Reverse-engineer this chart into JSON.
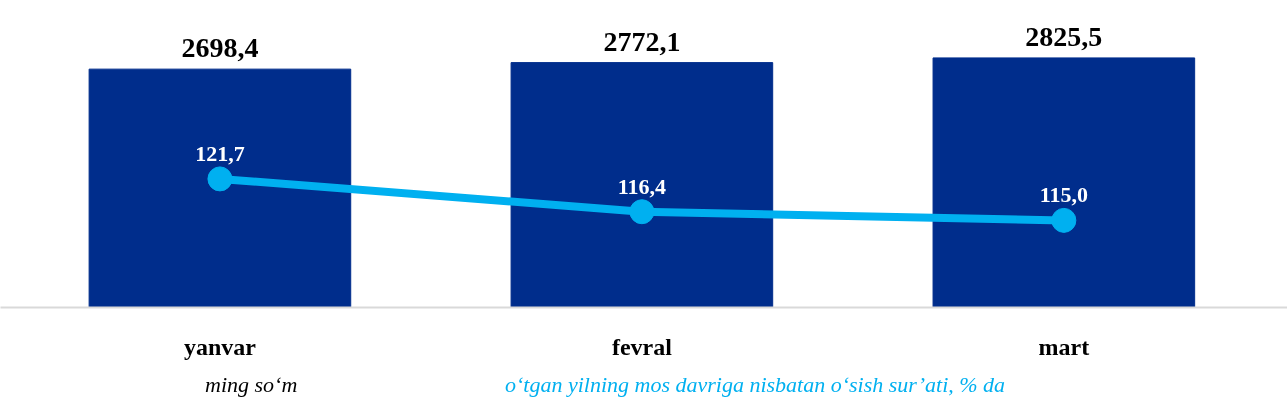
{
  "chart_data": {
    "type": "bar",
    "categories": [
      "yanvar",
      "fevral",
      "mart"
    ],
    "series": [
      {
        "name": "ming so‘m",
        "color": "#002d8c",
        "values": [
          2698.4,
          2772.1,
          2825.5
        ],
        "value_labels": [
          "2698,4",
          "2772,1",
          "2825,5"
        ]
      },
      {
        "name": "o‘tgan yilning mos davriga nisbatan o‘sish sur’ati, % da",
        "type": "line",
        "axis": "y2",
        "color": "#00b0f0",
        "values": [
          121.7,
          116.4,
          115.0
        ],
        "value_labels": [
          "121,7",
          "116,4",
          "115,0"
        ]
      }
    ],
    "tick_labels": "x",
    "grid": false,
    "legend": "bottom",
    "marker": "circle"
  }
}
